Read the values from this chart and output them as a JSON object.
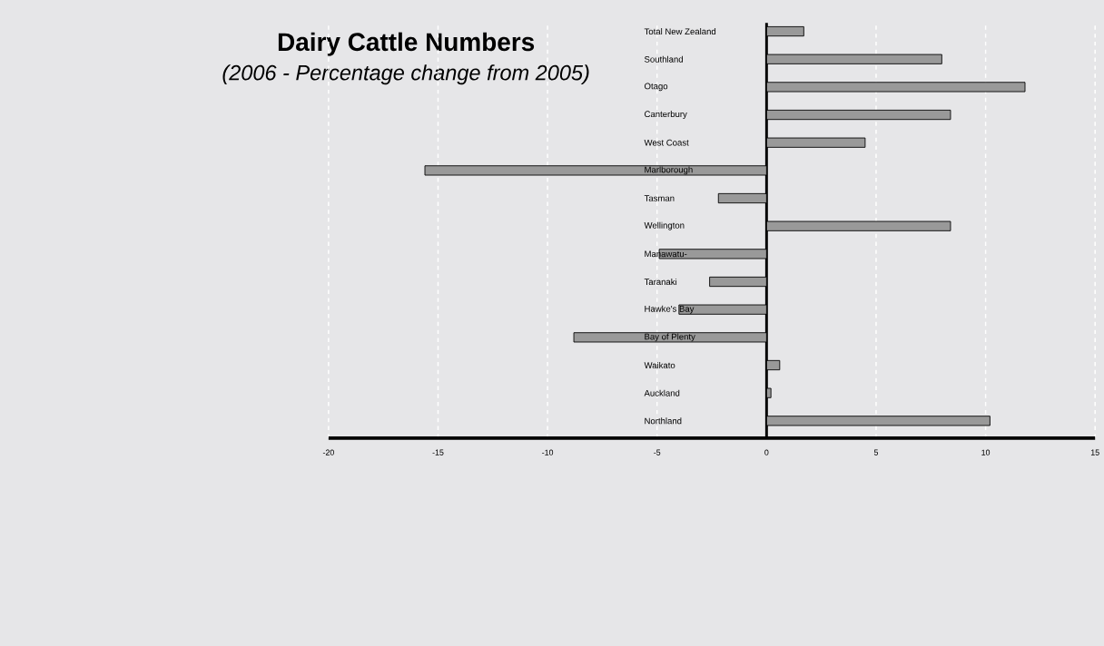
{
  "chart_data": {
    "type": "bar",
    "orientation": "horizontal",
    "title": "Dairy Cattle Numbers",
    "subtitle": "(2006 - Percentage change from 2005)",
    "categories": [
      "Total New Zealand",
      "Southland",
      "Otago",
      "Canterbury",
      "West Coast",
      "Marlborough",
      "Tasman",
      "Wellington",
      "Manawatu-",
      "Taranaki",
      "Hawke's Bay",
      "Bay of Plenty",
      "Waikato",
      "Auckland",
      "Northland"
    ],
    "values": [
      1.7,
      8.0,
      11.8,
      8.4,
      4.5,
      -15.6,
      -2.2,
      8.4,
      -4.9,
      -2.6,
      -4.0,
      -8.8,
      0.6,
      0.2,
      10.2
    ],
    "color": "#999999",
    "xlim": [
      -20,
      15
    ],
    "xticks": [
      -20,
      -15,
      -10,
      -5,
      0,
      5,
      10,
      15
    ],
    "grid": "x"
  }
}
